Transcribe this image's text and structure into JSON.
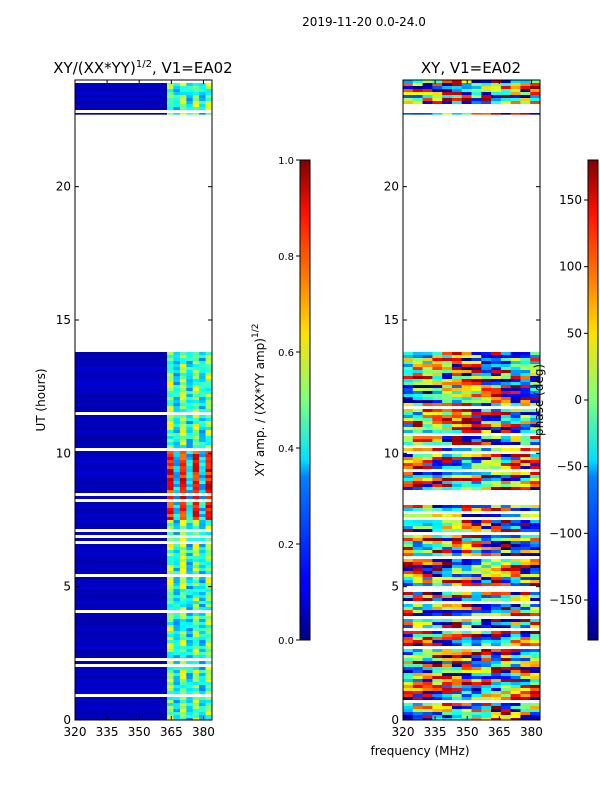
{
  "figure": {
    "suptitle": "2019-11-20 0.0-24.0",
    "xlabel": "frequency (MHz)"
  },
  "chart_data": [
    {
      "type": "heatmap",
      "title_main": "XY/(XX*YY)",
      "title_sup": "1/2",
      "title_tail": ", V1=EA02",
      "ylabel": "UT (hours)",
      "xlim": [
        320,
        384
      ],
      "ylim": [
        0,
        24
      ],
      "xticks": [
        320,
        335,
        350,
        365,
        380
      ],
      "yticks": [
        0,
        5,
        10,
        15,
        20
      ],
      "colorbar": {
        "label_main": "XY amp. / (XX*YY amp)",
        "label_sup": "1/2",
        "range": [
          0.0,
          1.0
        ],
        "ticks": [
          "0.0",
          "0.2",
          "0.4",
          "0.6",
          "0.8",
          "1.0"
        ]
      },
      "data_bands_hours": [
        [
          0,
          13.8
        ],
        [
          22.7,
          24
        ]
      ],
      "high_freq_region_mhz": [
        363,
        384
      ]
    },
    {
      "type": "heatmap",
      "title": "XY, V1=EA02",
      "xlim": [
        320,
        384
      ],
      "ylim": [
        0,
        24
      ],
      "xticks": [
        320,
        335,
        350,
        365,
        380
      ],
      "yticks": [
        0,
        5,
        10,
        15,
        20
      ],
      "colorbar": {
        "label": "phase (deg)",
        "range": [
          -180,
          180
        ],
        "ticks": [
          "−150",
          "−100",
          "−50",
          "0",
          "50",
          "100",
          "150"
        ]
      },
      "data_bands_hours": [
        [
          0,
          13.8
        ],
        [
          22.7,
          24
        ]
      ]
    }
  ]
}
